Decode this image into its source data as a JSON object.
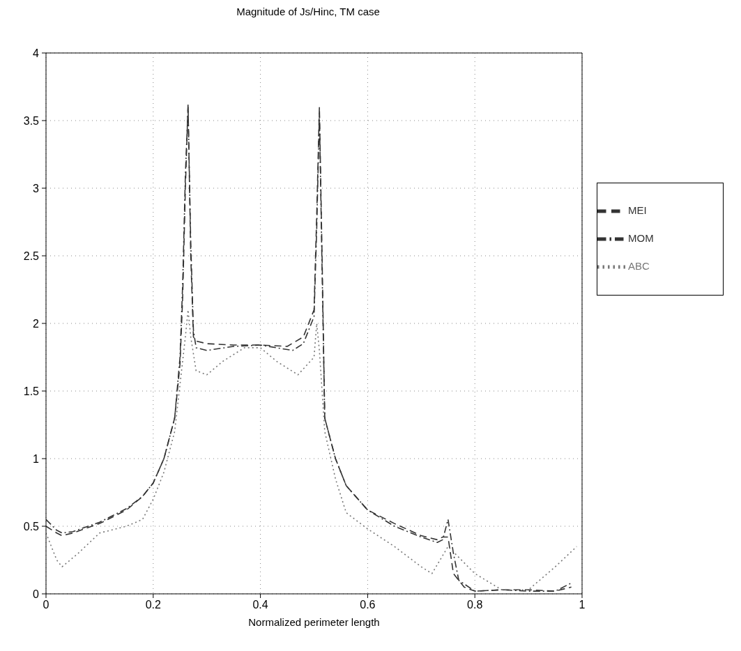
{
  "chart_data": {
    "type": "line",
    "title": "Magnitude of Js/Hinc, TM case",
    "xlabel": "Normalized perimeter length",
    "xlim": [
      0,
      1
    ],
    "xticks": [
      0,
      0.2,
      0.4,
      0.6,
      0.8,
      1
    ],
    "ylim": [
      0,
      4
    ],
    "yticks": [
      0,
      0.5,
      1,
      1.5,
      2,
      2.5,
      3,
      3.5,
      4
    ],
    "grid": true,
    "legend": "right",
    "marker": "none",
    "series": [
      {
        "name": "MEI",
        "color": "#333333",
        "line_style": "dashed",
        "x": [
          0,
          0.02,
          0.03,
          0.05,
          0.1,
          0.15,
          0.18,
          0.2,
          0.22,
          0.24,
          0.25,
          0.255,
          0.26,
          0.265,
          0.27,
          0.275,
          0.28,
          0.3,
          0.35,
          0.4,
          0.45,
          0.48,
          0.5,
          0.505,
          0.51,
          0.515,
          0.52,
          0.54,
          0.56,
          0.6,
          0.65,
          0.7,
          0.73,
          0.74,
          0.75,
          0.76,
          0.78,
          0.8,
          0.85,
          0.9,
          0.95,
          0.98
        ],
        "values": [
          0.5,
          0.45,
          0.43,
          0.45,
          0.52,
          0.62,
          0.72,
          0.82,
          1.0,
          1.3,
          1.7,
          2.2,
          3.0,
          3.62,
          2.5,
          1.9,
          1.87,
          1.85,
          1.84,
          1.84,
          1.83,
          1.9,
          2.1,
          2.8,
          3.6,
          2.5,
          1.3,
          1.0,
          0.8,
          0.62,
          0.52,
          0.43,
          0.4,
          0.42,
          0.42,
          0.15,
          0.05,
          0.02,
          0.03,
          0.03,
          0.02,
          0.05
        ]
      },
      {
        "name": "MOM",
        "color": "#333333",
        "line_style": "dashdot",
        "x": [
          0,
          0.02,
          0.03,
          0.05,
          0.1,
          0.15,
          0.18,
          0.2,
          0.22,
          0.24,
          0.25,
          0.255,
          0.26,
          0.265,
          0.27,
          0.275,
          0.28,
          0.3,
          0.35,
          0.4,
          0.46,
          0.48,
          0.5,
          0.505,
          0.51,
          0.515,
          0.52,
          0.54,
          0.56,
          0.6,
          0.65,
          0.7,
          0.73,
          0.74,
          0.75,
          0.76,
          0.77,
          0.8,
          0.85,
          0.9,
          0.95,
          0.98
        ],
        "values": [
          0.55,
          0.47,
          0.45,
          0.46,
          0.53,
          0.63,
          0.72,
          0.82,
          1.0,
          1.3,
          1.75,
          2.3,
          3.1,
          3.6,
          2.6,
          1.95,
          1.82,
          1.8,
          1.83,
          1.84,
          1.8,
          1.85,
          2.05,
          2.7,
          3.55,
          2.4,
          1.3,
          1.0,
          0.8,
          0.62,
          0.5,
          0.42,
          0.38,
          0.4,
          0.55,
          0.3,
          0.1,
          0.02,
          0.03,
          0.02,
          0.02,
          0.08
        ]
      },
      {
        "name": "ABC",
        "color": "#777777",
        "line_style": "dotted",
        "x": [
          0,
          0.02,
          0.03,
          0.06,
          0.1,
          0.15,
          0.18,
          0.2,
          0.22,
          0.24,
          0.26,
          0.265,
          0.27,
          0.28,
          0.3,
          0.33,
          0.37,
          0.4,
          0.43,
          0.47,
          0.5,
          0.505,
          0.51,
          0.52,
          0.54,
          0.56,
          0.6,
          0.65,
          0.7,
          0.72,
          0.75,
          0.8,
          0.85,
          0.9,
          0.95,
          0.99
        ],
        "values": [
          0.45,
          0.25,
          0.2,
          0.3,
          0.45,
          0.5,
          0.55,
          0.7,
          0.9,
          1.2,
          1.9,
          2.1,
          1.9,
          1.65,
          1.62,
          1.72,
          1.82,
          1.82,
          1.72,
          1.62,
          1.75,
          2.0,
          1.8,
          1.2,
          0.85,
          0.6,
          0.48,
          0.35,
          0.2,
          0.15,
          0.35,
          0.15,
          0.03,
          0.03,
          0.2,
          0.35
        ]
      }
    ]
  }
}
